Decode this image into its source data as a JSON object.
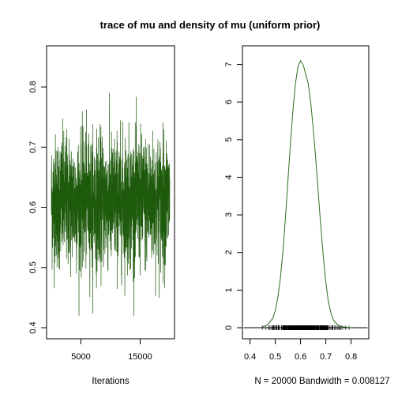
{
  "chart_data": [
    {
      "type": "line",
      "title": "trace of mu and density of mu (uniform prior)",
      "xlabel": "Iterations",
      "ylabel": "",
      "n_iterations": 20000,
      "xlim": [
        1,
        20000
      ],
      "xticks": [
        5000,
        15000
      ],
      "ylim": [
        0.4,
        0.85
      ],
      "yticks": [
        0.4,
        0.5,
        0.6,
        0.7,
        0.8
      ],
      "series_color": "#1e5a0c",
      "trace_summary": {
        "mean": 0.61,
        "sd": 0.055,
        "max": 0.85,
        "min": 0.42
      },
      "grid": false
    },
    {
      "type": "line",
      "xlabel": "N = 20000   Bandwidth = 0.008127",
      "ylabel": "",
      "xlim": [
        0.37,
        0.87
      ],
      "xticks": [
        0.4,
        0.5,
        0.6,
        0.7,
        0.8
      ],
      "ylim": [
        0,
        7.2
      ],
      "yticks": [
        0,
        1,
        2,
        3,
        4,
        5,
        6,
        7
      ],
      "series_color": "#2d6e1e",
      "x": [
        0.45,
        0.47,
        0.49,
        0.5,
        0.51,
        0.52,
        0.53,
        0.54,
        0.55,
        0.56,
        0.57,
        0.58,
        0.59,
        0.6,
        0.61,
        0.62,
        0.63,
        0.64,
        0.65,
        0.66,
        0.67,
        0.68,
        0.69,
        0.7,
        0.71,
        0.72,
        0.73,
        0.75,
        0.77,
        0.8
      ],
      "y": [
        0.02,
        0.08,
        0.25,
        0.45,
        0.8,
        1.3,
        2.0,
        2.9,
        3.9,
        4.9,
        5.8,
        6.5,
        6.95,
        7.1,
        7.0,
        6.75,
        6.5,
        6.0,
        5.3,
        4.5,
        3.6,
        2.7,
        1.9,
        1.2,
        0.7,
        0.4,
        0.2,
        0.06,
        0.02,
        0.0
      ],
      "rug": true,
      "grid": false
    }
  ]
}
